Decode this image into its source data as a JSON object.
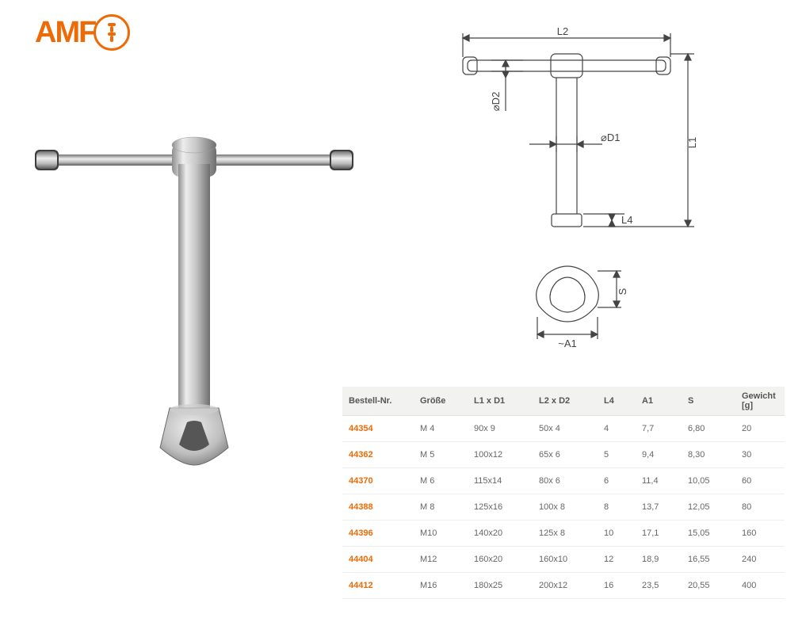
{
  "logo": {
    "text": "AMF"
  },
  "table": {
    "columns": [
      "Bestell-Nr.",
      "Größe",
      "L1 x D1",
      "L2 x D2",
      "L4",
      "A1",
      "S",
      "Gewicht\n[g]"
    ],
    "col_classes": [
      "col-bn",
      "col-gr",
      "col-l1",
      "col-l2",
      "col-l4",
      "col-a1",
      "col-s",
      ""
    ],
    "header_bg": "#f2f2f0",
    "accent_color": "#ec6b06",
    "text_color": "#666666",
    "fontsize": 11,
    "rows": [
      {
        "order": "44354",
        "groesse": "M 4",
        "l1d1": "90x 9",
        "l2d2": "50x 4",
        "l4": "4",
        "a1": "7,7",
        "s": "6,80",
        "gewicht": "20"
      },
      {
        "order": "44362",
        "groesse": "M 5",
        "l1d1": "100x12",
        "l2d2": "65x 6",
        "l4": "5",
        "a1": "9,4",
        "s": "8,30",
        "gewicht": "30"
      },
      {
        "order": "44370",
        "groesse": "M 6",
        "l1d1": "115x14",
        "l2d2": "80x 6",
        "l4": "6",
        "a1": "11,4",
        "s": "10,05",
        "gewicht": "60"
      },
      {
        "order": "44388",
        "groesse": "M 8",
        "l1d1": "125x16",
        "l2d2": "100x 8",
        "l4": "8",
        "a1": "13,7",
        "s": "12,05",
        "gewicht": "80"
      },
      {
        "order": "44396",
        "groesse": "M10",
        "l1d1": "140x20",
        "l2d2": "125x 8",
        "l4": "10",
        "a1": "17,1",
        "s": "15,05",
        "gewicht": "160"
      },
      {
        "order": "44404",
        "groesse": "M12",
        "l1d1": "160x20",
        "l2d2": "160x10",
        "l4": "12",
        "a1": "18,9",
        "s": "16,55",
        "gewicht": "240"
      },
      {
        "order": "44412",
        "groesse": "M16",
        "l1d1": "180x25",
        "l2d2": "200x12",
        "l4": "16",
        "a1": "23,5",
        "s": "20,55",
        "gewicht": "400"
      }
    ]
  },
  "drawing": {
    "labels": {
      "l1": "L1",
      "l2": "L2",
      "d1": "⌀D1",
      "d2": "⌀D2",
      "l4": "L4",
      "a1": "~A1",
      "s": "S"
    },
    "stroke": "#444444",
    "fill": "#ffffff",
    "text_color": "#444444",
    "fontsize": 13
  },
  "render": {
    "metal_light": "#e6e6e6",
    "metal_mid": "#bcbcbc",
    "metal_dark": "#7a7a7a"
  }
}
